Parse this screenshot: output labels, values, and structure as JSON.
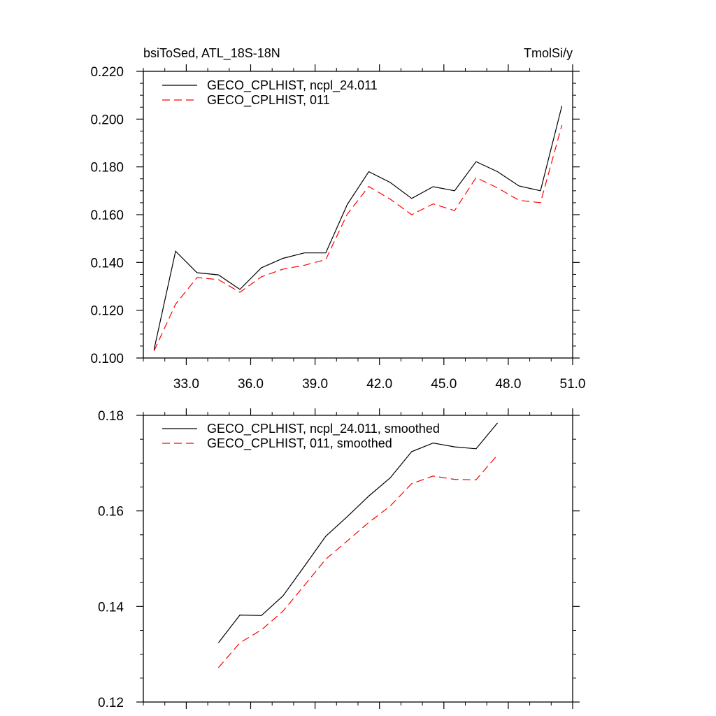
{
  "chart_data": [
    {
      "type": "line",
      "title_left": "bsiToSed, ATL_18S-18N",
      "title_right": "TmolSi/y",
      "xlim": [
        31.0,
        51.0
      ],
      "ylim": [
        0.1,
        0.22
      ],
      "x_ticks": [
        33.0,
        36.0,
        39.0,
        42.0,
        45.0,
        48.0,
        51.0
      ],
      "x_tick_labels": [
        "33.0",
        "36.0",
        "39.0",
        "42.0",
        "45.0",
        "48.0",
        "51.0"
      ],
      "y_ticks": [
        0.1,
        0.12,
        0.14,
        0.16,
        0.18,
        0.2,
        0.22
      ],
      "y_tick_labels": [
        "0.100",
        "0.120",
        "0.140",
        "0.160",
        "0.180",
        "0.200",
        "0.220"
      ],
      "grid": false,
      "legend_position": "top-left",
      "x": [
        31.5,
        32.5,
        33.5,
        34.5,
        35.5,
        36.5,
        37.5,
        38.5,
        39.5,
        40.5,
        41.5,
        42.5,
        43.5,
        44.5,
        45.5,
        46.5,
        47.5,
        48.5,
        49.5,
        50.5
      ],
      "series": [
        {
          "name": "GECO_CPLHIST, ncpl_24.011",
          "color": "#000000",
          "dash": "solid",
          "values": [
            0.1035,
            0.1447,
            0.1357,
            0.1348,
            0.1287,
            0.1378,
            0.1417,
            0.144,
            0.144,
            0.1642,
            0.178,
            0.1735,
            0.1668,
            0.1717,
            0.17,
            0.1822,
            0.178,
            0.172,
            0.17,
            0.2055
          ]
        },
        {
          "name": "GECO_CPLHIST, 011",
          "color": "#ff0000",
          "dash": "dashed",
          "values": [
            0.103,
            0.1225,
            0.1337,
            0.1328,
            0.1275,
            0.134,
            0.1372,
            0.1388,
            0.1412,
            0.1602,
            0.1718,
            0.1665,
            0.16,
            0.1645,
            0.1617,
            0.1755,
            0.1712,
            0.166,
            0.165,
            0.1975
          ]
        }
      ]
    },
    {
      "type": "line",
      "xlim": [
        31.0,
        51.0
      ],
      "ylim": [
        0.12,
        0.18
      ],
      "x_ticks": [
        33.0,
        36.0,
        39.0,
        42.0,
        45.0,
        48.0,
        51.0
      ],
      "y_ticks": [
        0.12,
        0.14,
        0.16,
        0.18
      ],
      "y_tick_labels": [
        "0.12",
        "0.14",
        "0.16",
        "0.18"
      ],
      "grid": false,
      "legend_position": "top-left",
      "x": [
        34.5,
        35.5,
        36.5,
        37.5,
        38.5,
        39.5,
        40.5,
        41.5,
        42.5,
        43.5,
        44.5,
        45.5,
        46.5,
        47.5
      ],
      "series": [
        {
          "name": "GECO_CPLHIST, ncpl_24.011, smoothed",
          "color": "#000000",
          "dash": "solid",
          "values": [
            0.1324,
            0.1382,
            0.1381,
            0.1422,
            0.1484,
            0.1547,
            0.1588,
            0.1631,
            0.1669,
            0.1724,
            0.1742,
            0.1734,
            0.173,
            0.1784
          ]
        },
        {
          "name": "GECO_CPLHIST, 011, smoothed",
          "color": "#ff0000",
          "dash": "dashed",
          "values": [
            0.1272,
            0.1324,
            0.1351,
            0.139,
            0.1444,
            0.1499,
            0.1537,
            0.1576,
            0.161,
            0.1657,
            0.1673,
            0.1666,
            0.1665,
            0.1717
          ]
        }
      ]
    }
  ]
}
